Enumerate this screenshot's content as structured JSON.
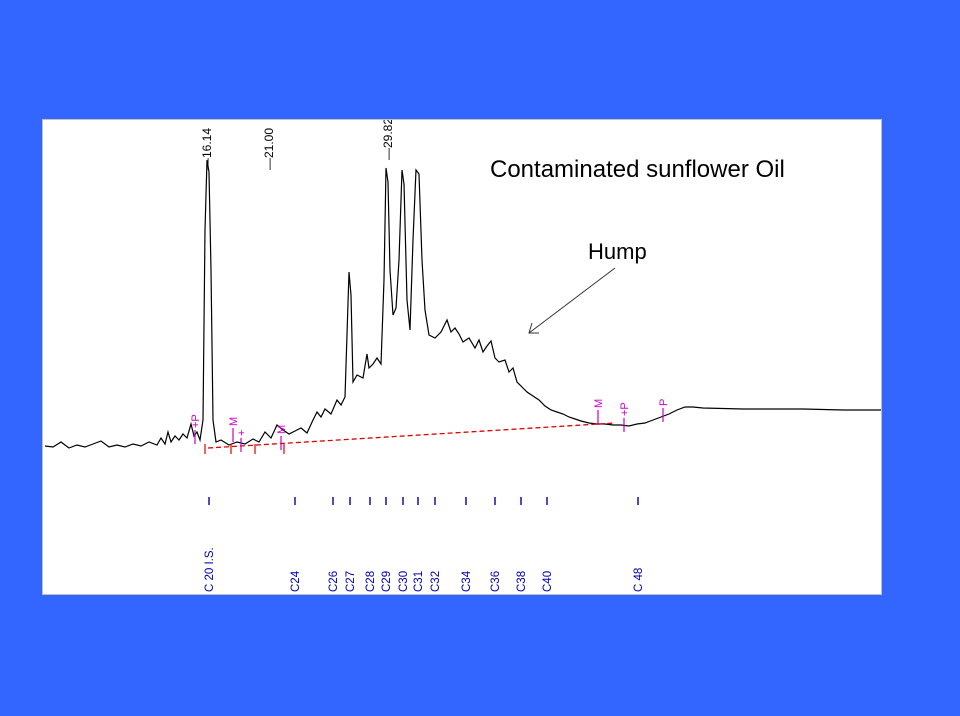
{
  "colors": {
    "background": "#3366ff",
    "trace": "#000000",
    "baseline": "#e00000",
    "markers": "#cc00cc",
    "carbon_labels": "#0000aa"
  },
  "chart_data": {
    "type": "line",
    "title": "Contaminated sunflower Oil",
    "xlabel": "",
    "ylabel": "",
    "annotation": {
      "text": "Hump",
      "arrow_target": "unresolved hump"
    },
    "peak_labels": [
      "16.14",
      "21.00",
      "29.82"
    ],
    "integration_marks": [
      {
        "label": "+P"
      },
      {
        "label": "M"
      },
      {
        "label": "+"
      },
      {
        "label": "M"
      },
      {
        "label": "M"
      },
      {
        "label": "+P"
      },
      {
        "label": "P"
      }
    ],
    "carbon_markers": [
      "C 20 I.S.",
      "C24",
      "C26",
      "C27",
      "C28",
      "C29",
      "C30",
      "C31",
      "C32",
      "C34",
      "C36",
      "C38",
      "C40",
      "C 48"
    ]
  }
}
